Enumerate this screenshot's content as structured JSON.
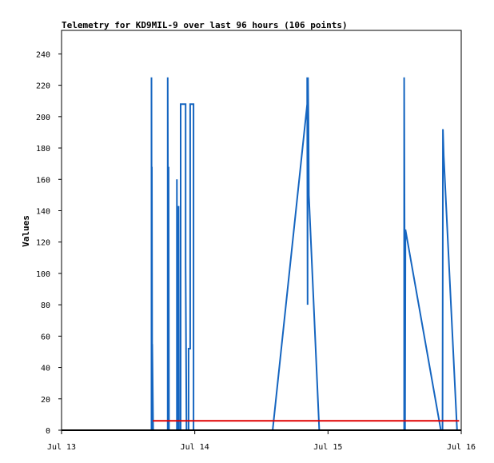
{
  "chart_data": {
    "type": "line",
    "title": "Telemetry for KD9MIL-9 over last 96 hours (106 points)",
    "xlabel": "",
    "ylabel": "Values",
    "ylim": [
      0,
      255
    ],
    "xlim": [
      0,
      96
    ],
    "y_ticks": [
      0,
      20,
      40,
      60,
      80,
      100,
      120,
      140,
      160,
      180,
      200,
      220,
      240
    ],
    "x_ticks": [
      {
        "x": 0,
        "label": "Jul 13"
      },
      {
        "x": 32,
        "label": "Jul 14"
      },
      {
        "x": 64,
        "label": "Jul 15"
      },
      {
        "x": 96,
        "label": "Jul 16"
      }
    ],
    "grid": false,
    "legend": "none",
    "series": [
      {
        "color": "#1565c0",
        "points": [
          [
            21.6,
            0
          ],
          [
            21.6,
            225
          ],
          [
            21.7,
            0
          ],
          [
            21.7,
            168
          ],
          [
            21.8,
            0
          ],
          [
            21.8,
            55
          ],
          [
            22.0,
            0
          ],
          [
            22.0,
            0
          ],
          [
            25.5,
            0
          ],
          [
            25.5,
            225
          ],
          [
            25.6,
            110
          ],
          [
            25.7,
            0
          ],
          [
            25.7,
            168
          ],
          [
            25.8,
            0
          ],
          [
            27.7,
            0
          ],
          [
            27.7,
            160
          ],
          [
            27.8,
            0
          ],
          [
            28.1,
            0
          ],
          [
            28.1,
            143
          ],
          [
            28.2,
            0
          ],
          [
            28.6,
            0
          ],
          [
            28.6,
            208
          ],
          [
            29.8,
            208
          ],
          [
            29.8,
            105
          ],
          [
            30.0,
            0
          ],
          [
            30.5,
            0
          ],
          [
            30.5,
            52
          ],
          [
            30.9,
            52
          ],
          [
            30.9,
            208
          ],
          [
            31.7,
            208
          ],
          [
            31.7,
            0
          ],
          [
            50.7,
            0
          ],
          [
            59.0,
            208
          ],
          [
            59.0,
            225
          ],
          [
            59.1,
            80
          ],
          [
            59.1,
            140
          ],
          [
            59.2,
            225
          ],
          [
            59.3,
            195
          ],
          [
            59.4,
            150
          ],
          [
            61.9,
            0
          ],
          [
            82.3,
            0
          ],
          [
            82.3,
            225
          ],
          [
            82.4,
            110
          ],
          [
            82.5,
            0
          ],
          [
            82.6,
            128
          ],
          [
            91.1,
            0
          ],
          [
            91.5,
            0
          ],
          [
            91.6,
            192
          ],
          [
            91.8,
            175
          ],
          [
            95.0,
            0
          ],
          [
            95.2,
            0
          ]
        ]
      },
      {
        "color": "#e00000",
        "points": [
          [
            21.9,
            6
          ],
          [
            95.5,
            6
          ]
        ]
      },
      {
        "color": "#000000",
        "points": [
          [
            0,
            0
          ],
          [
            96,
            0
          ]
        ]
      }
    ]
  }
}
